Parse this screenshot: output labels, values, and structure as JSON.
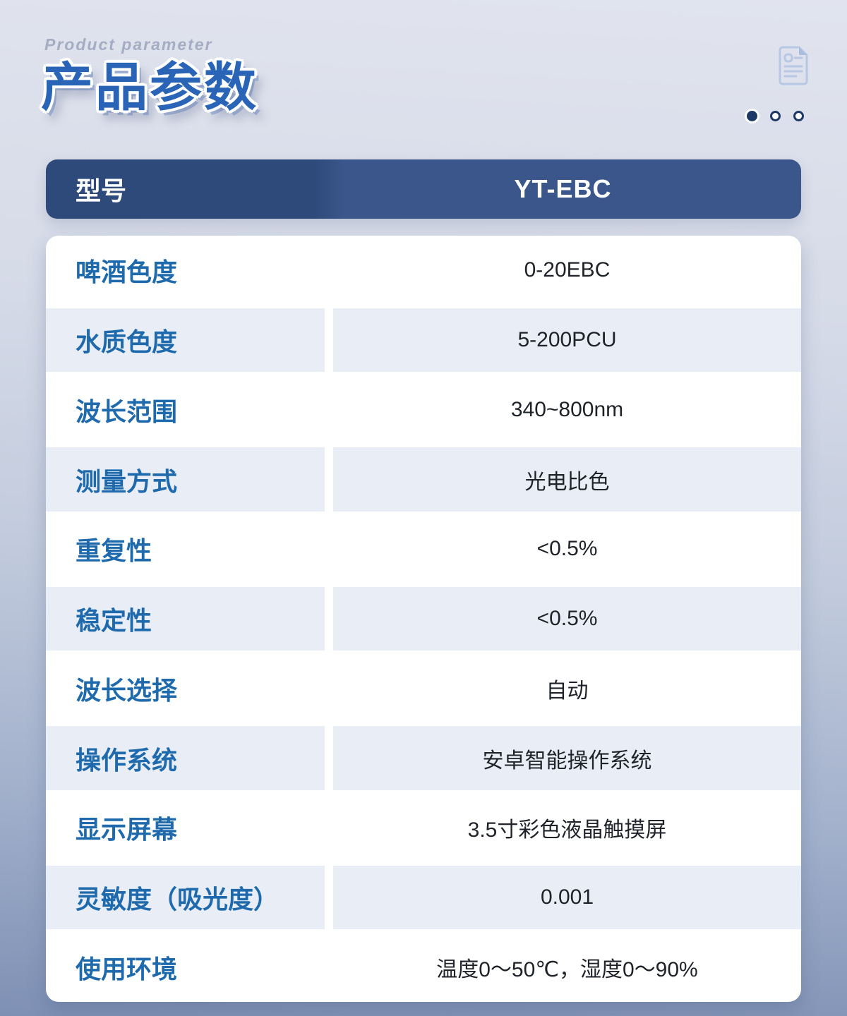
{
  "header_section": {
    "eyebrow": "Product parameter",
    "title": "产品参数",
    "doc_icon": "document-icon",
    "pagination_dots": [
      {
        "state": "active"
      },
      {
        "state": "inactive"
      },
      {
        "state": "inactive"
      }
    ]
  },
  "table": {
    "header": {
      "label": "型号",
      "value": "YT-EBC"
    },
    "rows": [
      {
        "label": "啤酒色度",
        "value": "0-20EBC"
      },
      {
        "label": "水质色度",
        "value": "5-200PCU"
      },
      {
        "label": "波长范围",
        "value": "340~800nm"
      },
      {
        "label": "测量方式",
        "value": "光电比色"
      },
      {
        "label": "重复性",
        "value": "<0.5%"
      },
      {
        "label": "稳定性",
        "value": "<0.5%"
      },
      {
        "label": "波长选择",
        "value": "自动"
      },
      {
        "label": "操作系统",
        "value": "安卓智能操作系统"
      },
      {
        "label": "显示屏幕",
        "value": "3.5寸彩色液晶触摸屏"
      },
      {
        "label": "灵敏度（吸光度）",
        "value": "0.001"
      },
      {
        "label": "使用环境",
        "value": "温度0～50℃，湿度0～90%"
      }
    ]
  },
  "colors": {
    "page_bg_top": "#e1e4ee",
    "page_bg_bottom": "#7e90b4",
    "header_left": "#2e4a7b",
    "header_right": "#3b568a",
    "row_shade": "#e9eef6",
    "label_blue": "#1e6aad",
    "title_blue": "#2a64b6",
    "dot_navy": "#1d3a66"
  }
}
